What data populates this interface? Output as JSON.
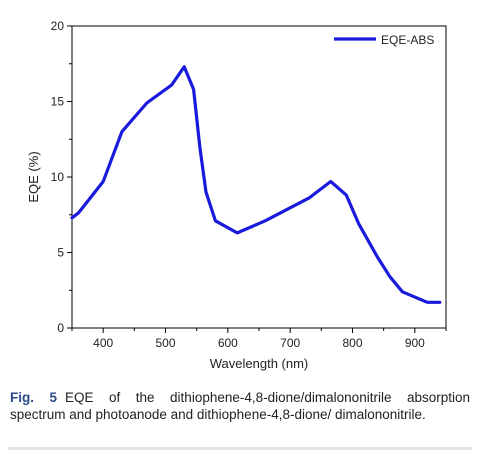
{
  "chart_data": {
    "type": "line",
    "xlabel": "Wavelength (nm)",
    "ylabel": "EQE (%)",
    "xlim": [
      350,
      950
    ],
    "ylim": [
      0,
      20
    ],
    "xticks": [
      400,
      500,
      600,
      700,
      800,
      900
    ],
    "yticks": [
      0,
      5,
      10,
      15,
      20
    ],
    "grid": false,
    "legend": "top-right",
    "series": [
      {
        "name": "EQE-ABS",
        "color": "#1a1adc",
        "x": [
          350,
          360,
          400,
          430,
          470,
          510,
          530,
          545,
          555,
          565,
          580,
          615,
          660,
          730,
          765,
          790,
          810,
          840,
          860,
          880,
          920,
          940
        ],
        "y": [
          7.3,
          7.6,
          9.7,
          13.0,
          14.9,
          16.1,
          17.3,
          15.8,
          12.0,
          9.0,
          7.1,
          6.3,
          7.1,
          8.6,
          9.7,
          8.8,
          6.9,
          4.7,
          3.4,
          2.4,
          1.7,
          1.7
        ]
      }
    ]
  },
  "caption": {
    "label": "Fig. 5",
    "text": "EQE of the dithiophene-4,8-dione/dimalononitrile absorption spectrum and photoanode and dithiophene-4,8-dione/ dimalononitrile."
  }
}
